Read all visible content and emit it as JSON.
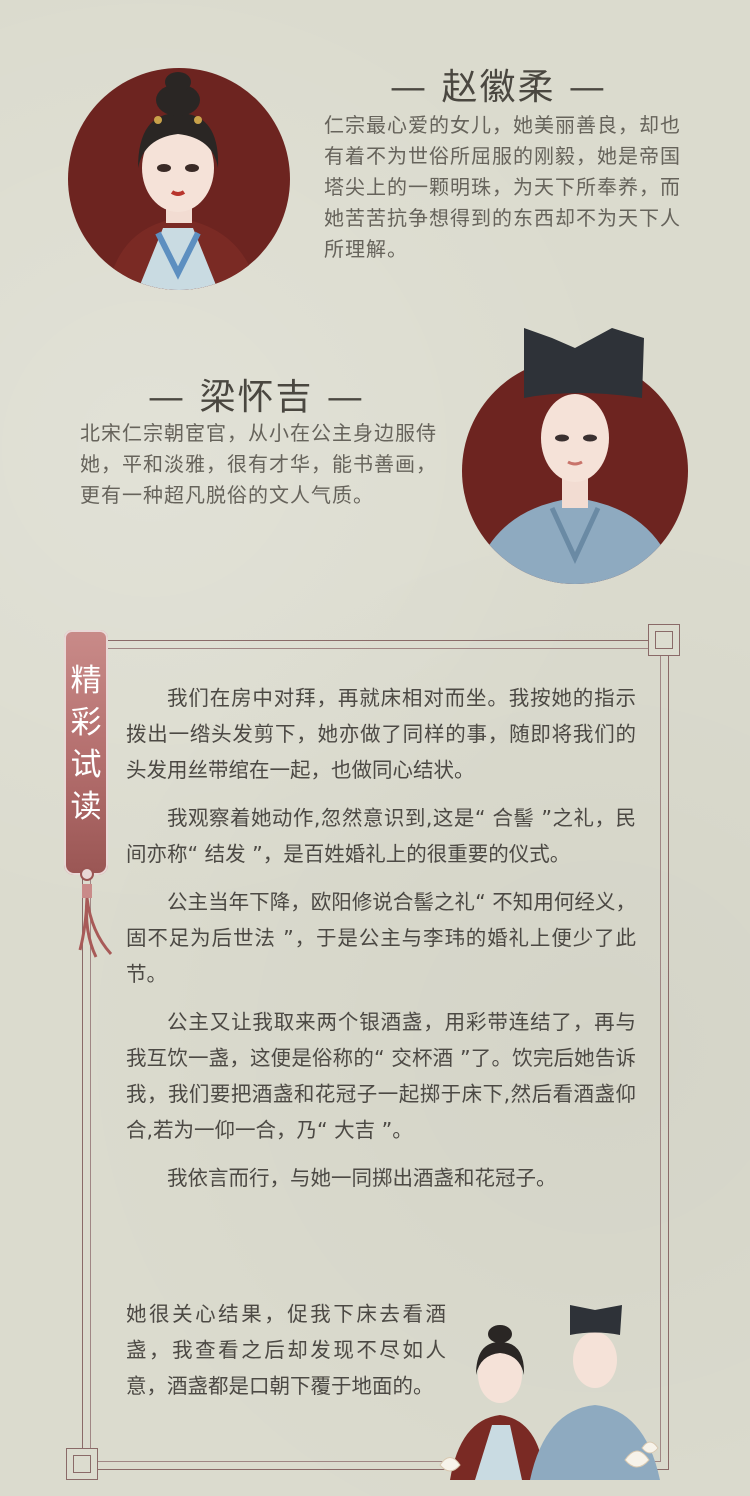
{
  "characters": [
    {
      "name": "— 赵徽柔 —",
      "description": "仁宗最心爱的女儿，她美丽善良，却也有着不为世俗所屈服的刚毅，她是帝国塔尖上的一颗明珠，为天下所奉养，而她苦苦抗争想得到的东西却不为天下人所理解。"
    },
    {
      "name": "— 梁怀吉 —",
      "description": "北宋仁宗朝宦官，从小在公主身边服侍她，平和淡雅，很有才华，能书善画，更有一种超凡脱俗的文人气质。"
    }
  ],
  "excerpt": {
    "tag": [
      "精",
      "彩",
      "试",
      "读"
    ],
    "paragraphs": [
      "我们在房中对拜，再就床相对而坐。我按她的指示拨出一绺头发剪下，她亦做了同样的事，随即将我们的头发用丝带绾在一起，也做同心结状。",
      "我观察着她动作,忽然意识到,这是“ 合髻 ”之礼，民间亦称“ 结发 ”，是百姓婚礼上的很重要的仪式。",
      "公主当年下降，欧阳修说合髻之礼“ 不知用何经义，固不足为后世法 ”，于是公主与李玮的婚礼上便少了此节。",
      "公主又让我取来两个银酒盏，用彩带连结了，再与我互饮一盏，这便是俗称的“ 交杯酒 ”了。饮完后她告诉我，我们要把酒盏和花冠子一起掷于床下,然后看酒盏仰合,若为一仰一合，乃“ 大吉 ”。"
    ],
    "last_paragraph_line1": "我依言而行，与她一同掷出酒盏和花冠子。",
    "last_paragraph_rest": "她很关心结果，促我下床去看酒盏，我查看之后却发现不尽如人意，酒盏都是口朝下覆于地面的。"
  },
  "colors": {
    "background": "#dcdccf",
    "circle": "#6d2420",
    "frame": "#8a6a68",
    "tag": "#b5706f"
  }
}
